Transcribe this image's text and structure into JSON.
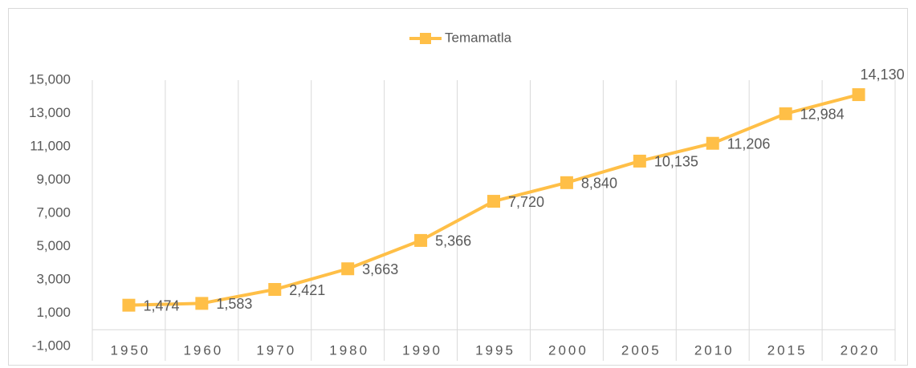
{
  "chart_data": {
    "type": "line",
    "categories": [
      "1950",
      "1960",
      "1970",
      "1980",
      "1990",
      "1995",
      "2000",
      "2005",
      "2010",
      "2015",
      "2020"
    ],
    "series": [
      {
        "name": "Temamatla",
        "color": "#ffbf47",
        "values": [
          1474,
          1583,
          2421,
          3663,
          5366,
          7720,
          8840,
          10135,
          11206,
          12984,
          14130
        ],
        "value_labels": [
          "1,474",
          "1,583",
          "2,421",
          "3,663",
          "5,366",
          "7,720",
          "8,840",
          "10,135",
          "11,206",
          "12,984",
          "14,130"
        ]
      }
    ],
    "ylim": [
      -1000,
      15000
    ],
    "yticks": [
      {
        "value": -1000,
        "label": "-1,000"
      },
      {
        "value": 1000,
        "label": "1,000"
      },
      {
        "value": 3000,
        "label": "3,000"
      },
      {
        "value": 5000,
        "label": "5,000"
      },
      {
        "value": 7000,
        "label": "7,000"
      },
      {
        "value": 9000,
        "label": "9,000"
      },
      {
        "value": 11000,
        "label": "11,000"
      },
      {
        "value": 13000,
        "label": "13,000"
      },
      {
        "value": 15000,
        "label": "15,000"
      }
    ],
    "legend": "top"
  }
}
